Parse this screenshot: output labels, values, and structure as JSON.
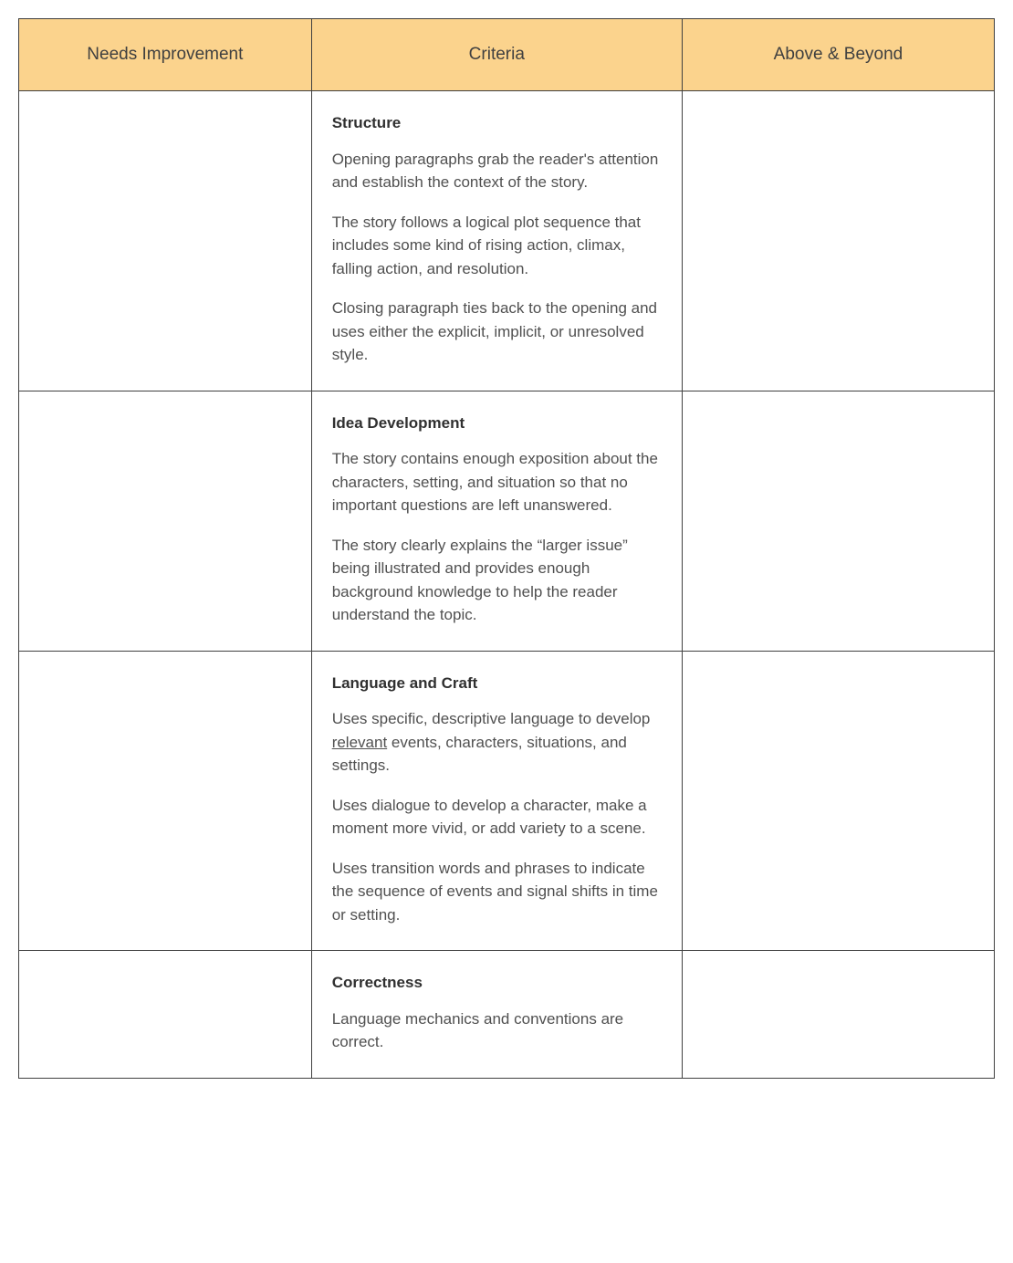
{
  "colors": {
    "header_bg": "#fbd38d",
    "border": "#404040",
    "text": "#404040",
    "body_bg": "#ffffff"
  },
  "typography": {
    "header_fontsize": 19,
    "body_fontsize": 17,
    "title_weight": 700
  },
  "columns": [
    {
      "label": "Needs Improvement",
      "width_pct": 30
    },
    {
      "label": "Criteria",
      "width_pct": 38
    },
    {
      "label": "Above & Beyond",
      "width_pct": 32
    }
  ],
  "rows": [
    {
      "left": "",
      "criteria": {
        "title": "Structure",
        "paras": [
          "Opening paragraphs grab the reader's attention and establish the context of the story.",
          "The story follows a logical plot sequence that includes some kind of rising action, climax, falling action, and resolution.",
          "Closing paragraph ties back to the opening and uses either the explicit, implicit, or unresolved style."
        ]
      },
      "right": ""
    },
    {
      "left": "",
      "criteria": {
        "title": "Idea Development",
        "paras": [
          "The story contains enough exposition about the characters, setting, and situation so that no important questions are left unanswered.",
          "The story clearly explains the “larger issue” being illustrated and provides enough background knowledge to help the reader understand the topic."
        ]
      },
      "right": ""
    },
    {
      "left": "",
      "criteria": {
        "title": "Language and Craft",
        "paras": [
          {
            "pre": "Uses specific, descriptive language to develop ",
            "underlined": "relevant",
            "post": " events, characters, situations, and settings."
          },
          "Uses dialogue to develop a character, make a moment more vivid, or add variety to a scene.",
          "Uses transition words and phrases to indicate the sequence of events and signal shifts in time or setting."
        ]
      },
      "right": ""
    },
    {
      "left": "",
      "criteria": {
        "title": "Correctness",
        "paras": [
          "Language mechanics and conventions are correct."
        ]
      },
      "right": ""
    }
  ]
}
